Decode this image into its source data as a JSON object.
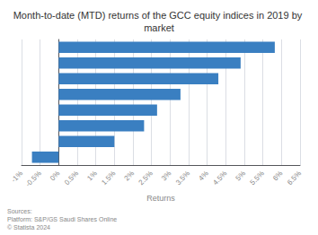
{
  "chart_data": {
    "type": "bar",
    "orientation": "horizontal",
    "title": "Month-to-date (MTD) returns of the GCC equity indices in 2019 by market",
    "xlabel": "Returns",
    "categories": [
      null,
      null,
      null,
      null,
      null,
      null,
      null,
      null
    ],
    "values": [
      5.82,
      4.9,
      4.3,
      3.28,
      2.65,
      2.3,
      1.5,
      -0.72
    ],
    "color": "#3a7fc1",
    "xlim": [
      -1.0,
      6.5
    ],
    "xticks": [
      {
        "value": -1.0,
        "label": "-1%"
      },
      {
        "value": -0.5,
        "label": "-0.5%"
      },
      {
        "value": 0.0,
        "label": "0%"
      },
      {
        "value": 0.5,
        "label": "0.5%"
      },
      {
        "value": 1.0,
        "label": "1%"
      },
      {
        "value": 1.5,
        "label": "1.5%"
      },
      {
        "value": 2.0,
        "label": "2%"
      },
      {
        "value": 2.5,
        "label": "2.5%"
      },
      {
        "value": 3.0,
        "label": "3%"
      },
      {
        "value": 3.5,
        "label": "3.5%"
      },
      {
        "value": 4.0,
        "label": "4%"
      },
      {
        "value": 4.5,
        "label": "4.5%"
      },
      {
        "value": 5.0,
        "label": "5%"
      },
      {
        "value": 5.5,
        "label": "5.5%"
      },
      {
        "value": 6.0,
        "label": "6%"
      },
      {
        "value": 6.5,
        "label": "6.5%"
      }
    ],
    "annotations": [
      "Sources:\nPlatform: S&P/GS Saudi Shares Online\n© Statista 2024"
    ],
    "grid": true
  }
}
